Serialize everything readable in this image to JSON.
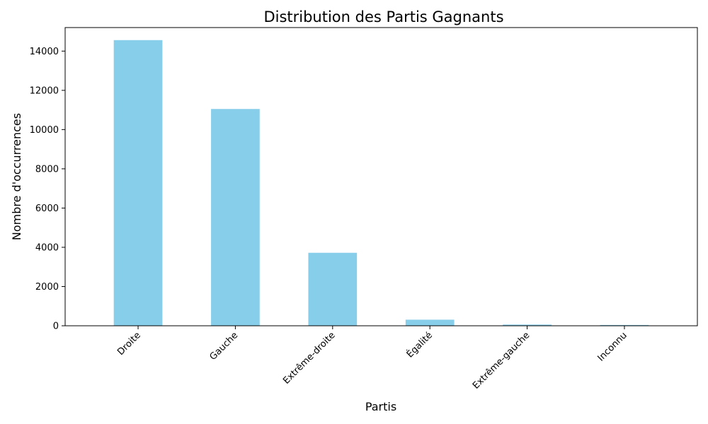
{
  "chart_data": {
    "type": "bar",
    "title": "Distribution des Partis Gagnants",
    "xlabel": "Partis",
    "ylabel": "Nombre d'occurrences",
    "categories": [
      "Droite",
      "Gauche",
      "Extrême-droite",
      "Égalité",
      "Extrême-gauche",
      "Inconnu"
    ],
    "values": [
      14560,
      11050,
      3720,
      310,
      60,
      40
    ],
    "ylim": [
      0,
      15200
    ],
    "yticks": [
      0,
      2000,
      4000,
      6000,
      8000,
      10000,
      12000,
      14000
    ],
    "ytick_labels": [
      "0",
      "2000",
      "4000",
      "6000",
      "8000",
      "10000",
      "12000",
      "14000"
    ],
    "bar_color": "#87CEEB",
    "grid": false,
    "legend": "none"
  }
}
